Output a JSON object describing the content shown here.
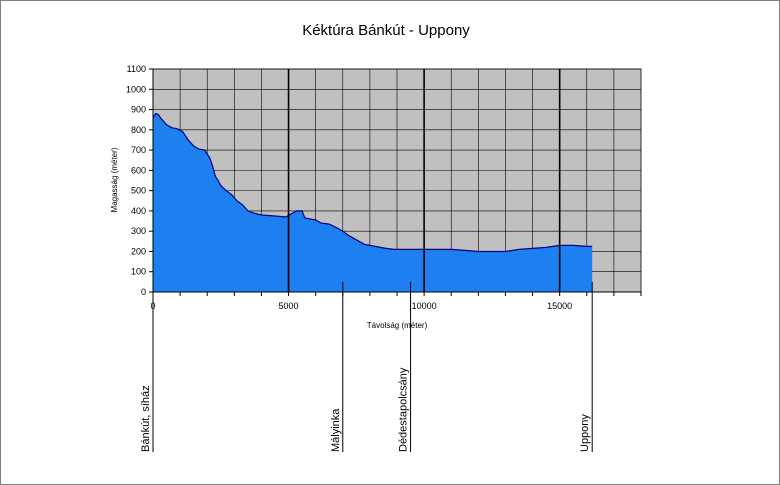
{
  "chart_data": {
    "type": "area",
    "title": "Kéktúra Bánkút - Uppony",
    "xlabel": "Távolság (méter)",
    "ylabel": "Magasság (méter)",
    "xlim": [
      0,
      18000
    ],
    "ylim": [
      0,
      1100
    ],
    "x_ticks": [
      0,
      5000,
      10000,
      15000
    ],
    "y_ticks": [
      0,
      100,
      200,
      300,
      400,
      500,
      600,
      700,
      800,
      900,
      1000,
      1100
    ],
    "x_minor_step": 1000,
    "major_vlines": [
      5000,
      10000,
      15000
    ],
    "grid": true,
    "colors": {
      "plot_bg": "#c0c0c0",
      "fill": "#1e7ff0",
      "line": "#000080",
      "grid": "#000000",
      "stroke": "#000000"
    },
    "series": [
      {
        "x": [
          0,
          100,
          200,
          300,
          500,
          700,
          900,
          1100,
          1300,
          1500,
          1700,
          1900,
          2100,
          2200,
          2300,
          2400,
          2500,
          2700,
          2900,
          3100,
          3300,
          3500,
          3700,
          4000,
          4500,
          4900,
          5100,
          5300,
          5500,
          5600,
          5800,
          6000,
          6200,
          6500,
          6800,
          7000,
          7200,
          7400,
          7600,
          7800,
          8000,
          8200,
          8400,
          8600,
          8900,
          9200,
          9600,
          10000,
          10500,
          11000,
          11500,
          12000,
          12500,
          13000,
          13500,
          14000,
          14500,
          15000,
          15500,
          16000,
          16200
        ],
        "values": [
          860,
          880,
          875,
          855,
          825,
          810,
          805,
          790,
          750,
          720,
          705,
          700,
          660,
          620,
          570,
          550,
          525,
          500,
          480,
          450,
          430,
          400,
          390,
          380,
          375,
          370,
          385,
          400,
          400,
          365,
          360,
          355,
          340,
          335,
          315,
          300,
          280,
          265,
          250,
          235,
          230,
          225,
          220,
          215,
          210,
          210,
          210,
          210,
          210,
          210,
          205,
          200,
          200,
          200,
          210,
          215,
          220,
          230,
          230,
          225,
          225
        ]
      }
    ],
    "annotations": [
      {
        "label": "Bánkút, síház",
        "x": 0
      },
      {
        "label": "Mályinka",
        "x": 7000
      },
      {
        "label": "Dédestapolcsány",
        "x": 9500
      },
      {
        "label": "Uppony",
        "x": 16200
      }
    ]
  }
}
